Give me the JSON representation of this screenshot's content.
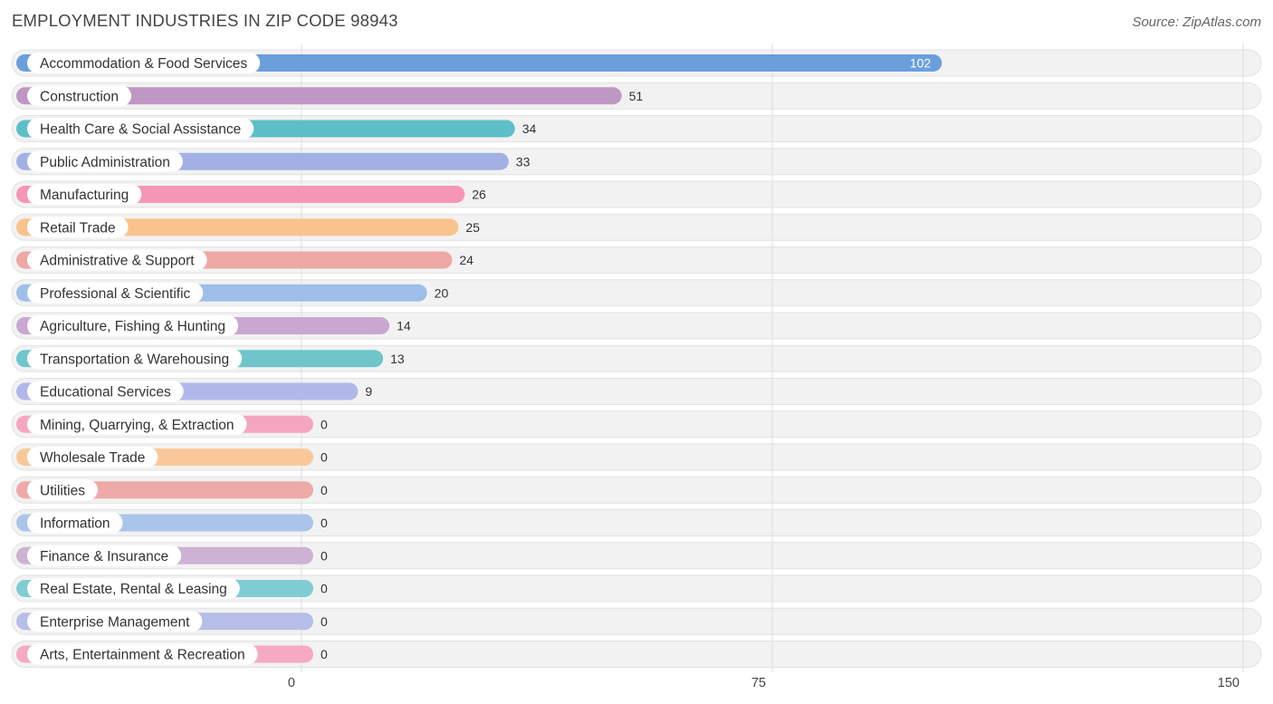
{
  "header": {
    "title": "EMPLOYMENT INDUSTRIES IN ZIP CODE 98943",
    "source": "Source: ZipAtlas.com"
  },
  "chart_data": {
    "type": "bar",
    "orientation": "horizontal",
    "title": "EMPLOYMENT INDUSTRIES IN ZIP CODE 98943",
    "xlim": [
      0,
      150
    ],
    "xticks": [
      0,
      75,
      150
    ],
    "grid": true,
    "categories": [
      "Accommodation & Food Services",
      "Construction",
      "Health Care & Social Assistance",
      "Public Administration",
      "Manufacturing",
      "Retail Trade",
      "Administrative & Support",
      "Professional & Scientific",
      "Agriculture, Fishing & Hunting",
      "Transportation & Warehousing",
      "Educational Services",
      "Mining, Quarrying, & Extraction",
      "Wholesale Trade",
      "Utilities",
      "Information",
      "Finance & Insurance",
      "Real Estate, Rental & Leasing",
      "Enterprise Management",
      "Arts, Entertainment & Recreation"
    ],
    "values": [
      102,
      51,
      34,
      33,
      26,
      25,
      24,
      20,
      14,
      13,
      9,
      0,
      0,
      0,
      0,
      0,
      0,
      0,
      0
    ],
    "colors": [
      "#6a9fdc",
      "#bf97c4",
      "#5dbfc7",
      "#a3b0e6",
      "#f597b4",
      "#f9c38e",
      "#eda8a3",
      "#9dbfe8",
      "#c8a8d0",
      "#6ec6cb",
      "#b0b8ea",
      "#f4a6c0",
      "#f9c89a",
      "#eeaaa8",
      "#a9c5ea",
      "#cdb2d4",
      "#7fcdd2",
      "#b7bde9",
      "#f5a9c2"
    ]
  }
}
